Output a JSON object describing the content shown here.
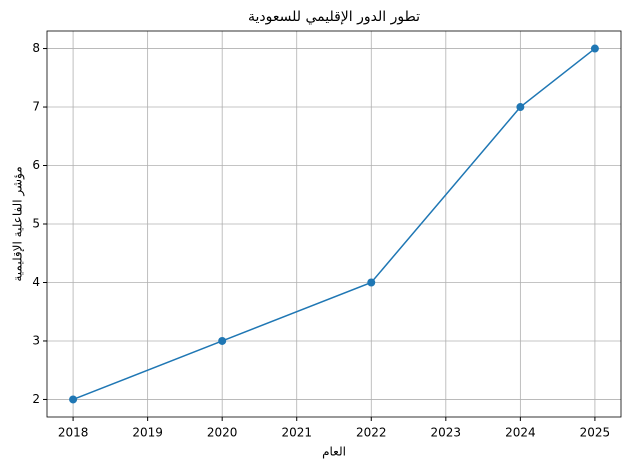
{
  "chart_data": {
    "type": "line",
    "title": "تطور الدور الإقليمي للسعودية",
    "x_label": "العام",
    "y_label": "مؤشر الفاعلية الإقليمية",
    "x": [
      2018,
      2020,
      2022,
      2024,
      2025
    ],
    "series": [
      {
        "name": null,
        "color": "#1f77b4",
        "values": [
          2,
          3,
          4,
          7,
          8
        ]
      }
    ],
    "xlim": [
      2017.65,
      2025.35
    ],
    "xticks": [
      2018,
      2019,
      2020,
      2021,
      2022,
      2023,
      2024,
      2025
    ],
    "ylim": [
      1.7,
      8.3
    ],
    "yticks": [
      2,
      3,
      4,
      5,
      6,
      7,
      8
    ],
    "grid": true
  }
}
